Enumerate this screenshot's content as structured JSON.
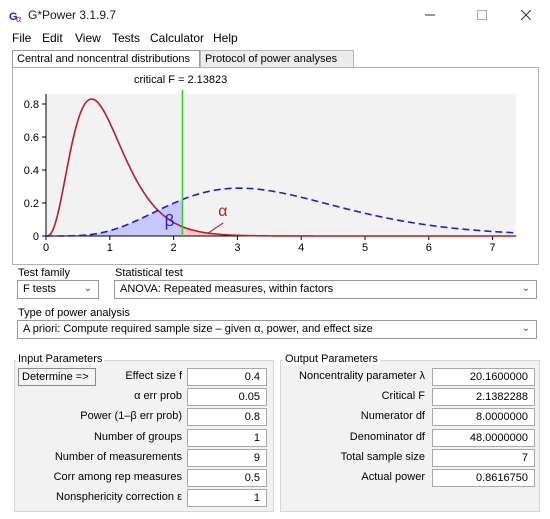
{
  "window": {
    "title": "G*Power 3.1.9.7",
    "icon": "gpower-app-icon"
  },
  "menu": [
    "File",
    "Edit",
    "View",
    "Tests",
    "Calculator",
    "Help"
  ],
  "tabs": [
    {
      "label": "Central and noncentral distributions",
      "active": true
    },
    {
      "label": "Protocol of power analyses",
      "active": false
    }
  ],
  "graph": {
    "critical_label": "critical F = 2.13823",
    "critical_value": 2.13823,
    "beta_symbol": "β",
    "alpha_symbol": "α",
    "x_ticks": [
      "0",
      "1",
      "2",
      "3",
      "4",
      "5",
      "6",
      "7"
    ],
    "y_ticks": [
      "0",
      "0.2",
      "0.4",
      "0.6",
      "0.8"
    ],
    "colors": {
      "central": "#b22222",
      "noncentral": "#1f1fbf",
      "critical": "#33cc33",
      "beta_fill": "#c8c8ff",
      "alpha_fill": "#ffc8c8",
      "plot_bg": "#f2f2f2"
    },
    "central_peak": 0.83,
    "noncentral_peak": 0.29
  },
  "test_family": {
    "label": "Test family",
    "value": "F tests"
  },
  "statistical_test": {
    "label": "Statistical test",
    "value": "ANOVA: Repeated measures, within factors"
  },
  "power_analysis": {
    "label": "Type of power analysis",
    "value": "A priori: Compute required sample size – given α, power, and effect size"
  },
  "input": {
    "title": "Input Parameters",
    "determine_label": "Determine =>",
    "rows": [
      {
        "label": "Effect size f",
        "value": "0.4"
      },
      {
        "label": "α err prob",
        "value": "0.05"
      },
      {
        "label": "Power (1–β err prob)",
        "value": "0.8"
      },
      {
        "label": "Number of groups",
        "value": "1"
      },
      {
        "label": "Number of measurements",
        "value": "9"
      },
      {
        "label": "Corr among rep measures",
        "value": "0.5"
      },
      {
        "label": "Nonsphericity correction ε",
        "value": "1"
      }
    ]
  },
  "output": {
    "title": "Output Parameters",
    "rows": [
      {
        "label": "Noncentrality parameter λ",
        "value": "20.1600000"
      },
      {
        "label": "Critical F",
        "value": "2.1382288"
      },
      {
        "label": "Numerator df",
        "value": "8.0000000"
      },
      {
        "label": "Denominator df",
        "value": "48.0000000"
      },
      {
        "label": "Total sample size",
        "value": "7"
      },
      {
        "label": "Actual power",
        "value": "0.8616750"
      }
    ]
  }
}
